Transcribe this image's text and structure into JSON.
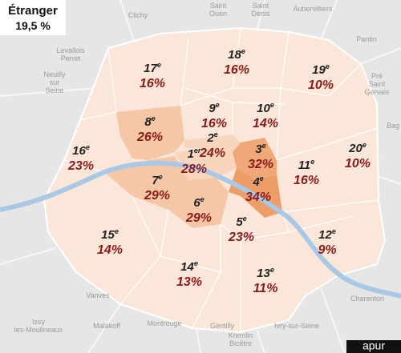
{
  "header": {
    "title": "Étranger",
    "value": "19,5 %"
  },
  "districts": [
    {
      "number": "17",
      "suffix": "e",
      "share": "16%"
    },
    {
      "number": "18",
      "suffix": "e",
      "share": "16%"
    },
    {
      "number": "19",
      "suffix": "e",
      "share": "10%"
    },
    {
      "number": "8",
      "suffix": "e",
      "share": "26%"
    },
    {
      "number": "9",
      "suffix": "e",
      "share": "16%"
    },
    {
      "number": "10",
      "suffix": "e",
      "share": "14%"
    },
    {
      "number": "2",
      "suffix": "e",
      "share": "24%"
    },
    {
      "number": "3",
      "suffix": "e",
      "share": "32%"
    },
    {
      "number": "1",
      "suffix": "er",
      "share": "28%"
    },
    {
      "number": "4",
      "suffix": "e",
      "share": "34%"
    },
    {
      "number": "11",
      "suffix": "e",
      "share": "16%"
    },
    {
      "number": "20",
      "suffix": "e",
      "share": "10%"
    },
    {
      "number": "16",
      "suffix": "e",
      "share": "23%"
    },
    {
      "number": "7",
      "suffix": "e",
      "share": "29%"
    },
    {
      "number": "6",
      "suffix": "e",
      "share": "29%"
    },
    {
      "number": "5",
      "suffix": "e",
      "share": "23%"
    },
    {
      "number": "12",
      "suffix": "e",
      "share": "9%"
    },
    {
      "number": "15",
      "suffix": "e",
      "share": "14%"
    },
    {
      "number": "14",
      "suffix": "e",
      "share": "13%"
    },
    {
      "number": "13",
      "suffix": "e",
      "share": "11%"
    }
  ],
  "places": [
    {
      "lines": [
        "Clichy"
      ]
    },
    {
      "lines": [
        "Saint",
        "Ouen"
      ]
    },
    {
      "lines": [
        "Saint",
        "Denis"
      ]
    },
    {
      "lines": [
        "Aubervilliers"
      ]
    },
    {
      "lines": [
        "Pantin"
      ]
    },
    {
      "lines": [
        "Levallois",
        "Perret"
      ]
    },
    {
      "lines": [
        "Neuilly",
        "sur",
        "Seine"
      ]
    },
    {
      "lines": [
        "Pré",
        "Saint",
        "Gervais"
      ]
    },
    {
      "lines": [
        "Bag"
      ]
    },
    {
      "lines": [
        "Vanves"
      ]
    },
    {
      "lines": [
        "Issy",
        "les-Moulineaux"
      ]
    },
    {
      "lines": [
        "Malakoff"
      ]
    },
    {
      "lines": [
        "Montrouge"
      ]
    },
    {
      "lines": [
        "Gentilly"
      ]
    },
    {
      "lines": [
        "Kremlin",
        "Bicêtre"
      ]
    },
    {
      "lines": [
        "Ivry-sur-Seine"
      ]
    },
    {
      "lines": [
        "Charenton"
      ]
    }
  ],
  "logo": "apur"
}
